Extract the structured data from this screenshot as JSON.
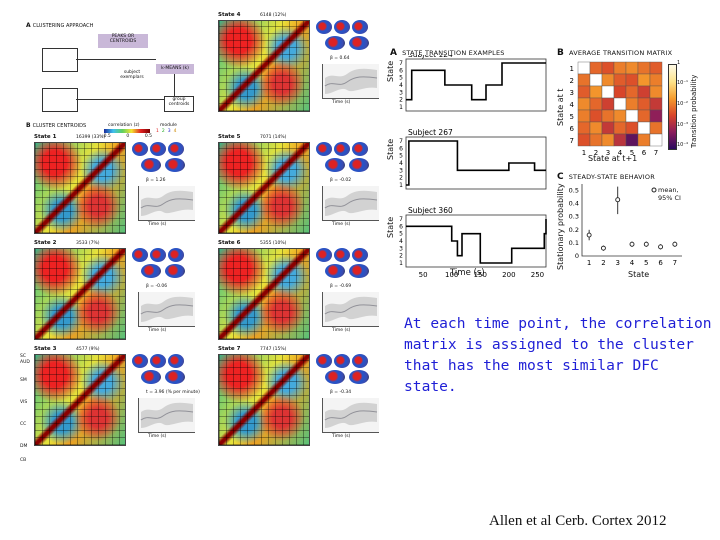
{
  "figure_left": {
    "panel_a_label": "A",
    "panel_a_title": "CLUSTERING APPROACH",
    "panel_a_boxes": {
      "peaks": "PEAKS OR CENTROIDS",
      "subject_exemplars": "subject exemplars",
      "kmeans": "k-MEANS (k)",
      "group_centroids": "group centroids"
    },
    "panel_b_label": "B",
    "panel_b_title": "CLUSTER CENTROIDS",
    "correlation_label": "correlation (z)",
    "module_label": "module",
    "module_ticks": [
      "1",
      "2",
      "3",
      "4"
    ],
    "corr_ticks": [
      "-0.5",
      "0",
      "0.5"
    ],
    "states": [
      {
        "name": "State 1",
        "count": "16399 (33%)",
        "beta": "β = 1.26"
      },
      {
        "name": "State 2",
        "count": "3533 (7%)",
        "beta": "β = -0.06"
      },
      {
        "name": "State 3",
        "count": "4577 (9%)",
        "beta": "t = 3.96 (% per minute)"
      },
      {
        "name": "State 4",
        "count": "6148 (12%)",
        "beta": "β = 0.64"
      },
      {
        "name": "State 5",
        "count": "7071 (14%)",
        "beta": "β = -0.02"
      },
      {
        "name": "State 6",
        "count": "5355 (10%)",
        "beta": "β = -0.69"
      },
      {
        "name": "State 7",
        "count": "7747 (15%)",
        "beta": "β = -0.34"
      }
    ],
    "occ_ylabel": "Number of occurrences (%)",
    "time_label": "Time (s)",
    "time_ticks": [
      "50",
      "100",
      "150",
      "200",
      "250"
    ],
    "network_labels": [
      "SC",
      "AUD",
      "SM",
      "VIS",
      "CC",
      "DM",
      "CB"
    ]
  },
  "panel_a": {
    "letter": "A",
    "title": "STATE TRANSITION EXAMPLES",
    "ylabel": "State",
    "xlabel": "Time (s)",
    "subjects": [
      "Subject 124",
      "Subject 267",
      "Subject 360"
    ],
    "y_ticks": [
      "1",
      "2",
      "3",
      "4",
      "5",
      "6",
      "7"
    ],
    "x_ticks": [
      "50",
      "100",
      "150",
      "200",
      "250"
    ]
  },
  "panel_b": {
    "letter": "B",
    "title": "AVERAGE TRANSITION MATRIX",
    "ylabel": "State at t",
    "xlabel": "State at t+1",
    "colorbar_label": "Transition probability",
    "colorbar_ticks": [
      "1",
      "10⁻¹",
      "10⁻²",
      "10⁻³",
      "10⁻⁴"
    ],
    "ticks": [
      "1",
      "2",
      "3",
      "4",
      "5",
      "6",
      "7"
    ]
  },
  "panel_c": {
    "letter": "C",
    "title": "STEADY-STATE BEHAVIOR",
    "ylabel": "Stationary probability",
    "xlabel": "State",
    "legend": "mean, 95% CI",
    "y_ticks": [
      "0",
      "0.1",
      "0.2",
      "0.3",
      "0.4",
      "0.5"
    ]
  },
  "chart_data": [
    {
      "type": "line",
      "title": "STATE TRANSITION EXAMPLES",
      "xlabel": "Time (s)",
      "ylabel": "State",
      "xlim": [
        20,
        265
      ],
      "ylim": [
        1,
        7
      ],
      "series": [
        {
          "name": "Subject 124",
          "steps": [
            [
              20,
              2
            ],
            [
              30,
              6
            ],
            [
              88,
              4
            ],
            [
              115,
              4
            ],
            [
              135,
              2
            ],
            [
              160,
              4
            ],
            [
              188,
              7
            ],
            [
              265,
              7
            ]
          ]
        },
        {
          "name": "Subject 267",
          "steps": [
            [
              20,
              1
            ],
            [
              25,
              7
            ],
            [
              110,
              3
            ],
            [
              200,
              4
            ],
            [
              245,
              3
            ],
            [
              265,
              3
            ]
          ]
        },
        {
          "name": "Subject 360",
          "steps": [
            [
              20,
              6
            ],
            [
              100,
              4
            ],
            [
              110,
              2
            ],
            [
              118,
              5
            ],
            [
              150,
              1
            ],
            [
              205,
              3
            ],
            [
              262,
              5
            ],
            [
              265,
              7
            ]
          ]
        }
      ]
    },
    {
      "type": "heatmap",
      "title": "AVERAGE TRANSITION MATRIX",
      "xlabel": "State at t+1",
      "ylabel": "State at t",
      "categories": [
        "1",
        "2",
        "3",
        "4",
        "5",
        "6",
        "7"
      ],
      "values_log10": [
        [
          -0.05,
          -2.2,
          -2.4,
          -2.0,
          -1.9,
          -2.1,
          -2.3
        ],
        [
          -2.1,
          -0.06,
          -1.9,
          -2.3,
          -2.4,
          -1.8,
          -2.0
        ],
        [
          -2.3,
          -1.8,
          -0.04,
          -2.5,
          -2.2,
          -2.6,
          -1.9
        ],
        [
          -1.9,
          -2.2,
          -2.6,
          -0.07,
          -2.0,
          -2.3,
          -2.7
        ],
        [
          -2.0,
          -2.4,
          -2.1,
          -1.9,
          -0.06,
          -2.2,
          -3.2
        ],
        [
          -2.2,
          -1.9,
          -2.7,
          -2.2,
          -2.4,
          -0.05,
          -2.1
        ],
        [
          -2.4,
          -2.1,
          -1.9,
          -2.8,
          -3.6,
          -2.0,
          -0.06
        ]
      ],
      "colorbar_range": [
        -4,
        0
      ]
    },
    {
      "type": "scatter",
      "title": "STEADY-STATE BEHAVIOR",
      "xlabel": "State",
      "ylabel": "Stationary probability",
      "ylim": [
        0,
        0.55
      ],
      "x": [
        1,
        2,
        3,
        4,
        5,
        6,
        7
      ],
      "series": [
        {
          "name": "mean, 95% CI",
          "values": [
            0.16,
            0.06,
            0.43,
            0.09,
            0.09,
            0.07,
            0.09
          ],
          "ci_low": [
            0.12,
            0.04,
            0.32,
            0.07,
            0.07,
            0.05,
            0.07
          ],
          "ci_high": [
            0.2,
            0.08,
            0.53,
            0.11,
            0.11,
            0.09,
            0.11
          ]
        }
      ]
    }
  ],
  "caption_lines": [
    "At each time point, the correlation",
    "matrix is assigned to the cluster",
    "that has the most similar DFC state."
  ],
  "citation": "Allen et al  Cerb. Cortex 2012"
}
